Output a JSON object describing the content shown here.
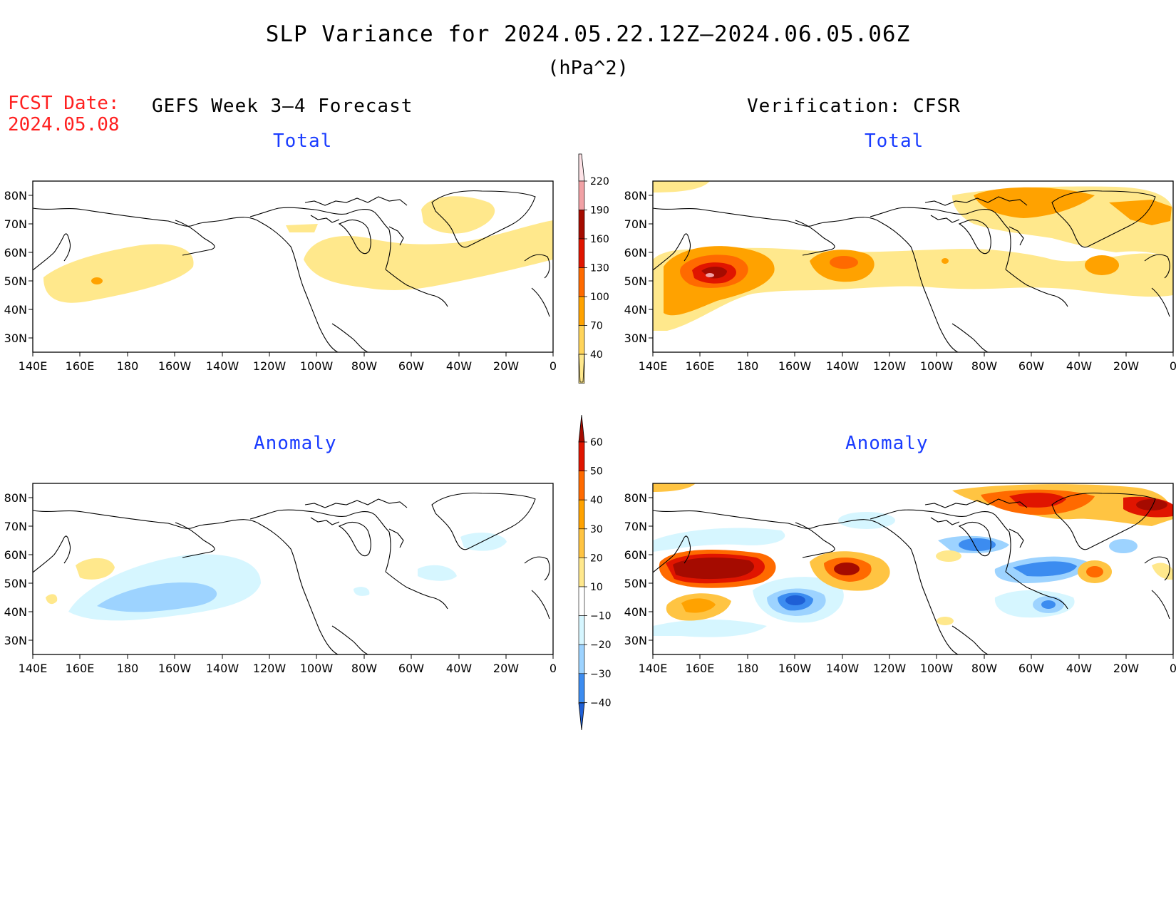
{
  "header": {
    "title": "SLP Variance for 2024.05.22.12Z–2024.06.05.06Z",
    "units": "(hPa^2)",
    "fcst_line1": "FCST Date:",
    "fcst_line2": "2024.05.08",
    "left_heading": "GEFS Week 3–4 Forecast",
    "right_heading": "Verification: CFSR"
  },
  "panels": {
    "tl": {
      "subtitle": "Total"
    },
    "tr": {
      "subtitle": "Total"
    },
    "bl": {
      "subtitle": "Anomaly"
    },
    "br": {
      "subtitle": "Anomaly"
    }
  },
  "axes": {
    "lat_labels": [
      "80N",
      "70N",
      "60N",
      "50N",
      "40N",
      "30N"
    ],
    "lon_labels": [
      "140E",
      "160E",
      "180",
      "160W",
      "140W",
      "120W",
      "100W",
      "80W",
      "60W",
      "40W",
      "20W",
      "0"
    ]
  },
  "colorbars": {
    "total": {
      "labels": [
        "220",
        "190",
        "160",
        "130",
        "100",
        "70",
        "40"
      ],
      "colors": [
        "#fde2e6",
        "#f1a1a5",
        "#a50b00",
        "#e01500",
        "#ff6a00",
        "#ffa200",
        "#ffd45a",
        "#ffe88c"
      ]
    },
    "anomaly": {
      "labels": [
        "60",
        "50",
        "40",
        "30",
        "20",
        "10",
        "−10",
        "−20",
        "−30",
        "−40"
      ],
      "colors": [
        "#a50b00",
        "#e01500",
        "#ff6a00",
        "#ffa200",
        "#ffc442",
        "#ffe88c",
        "#ffffff",
        "#d6f6ff",
        "#9dd3ff",
        "#3c8cf0",
        "#1e5fd6"
      ]
    }
  },
  "palette": {
    "land_line": "#000000",
    "title_red": "#ff2020",
    "subtitle_blue": "#1a3cff"
  }
}
